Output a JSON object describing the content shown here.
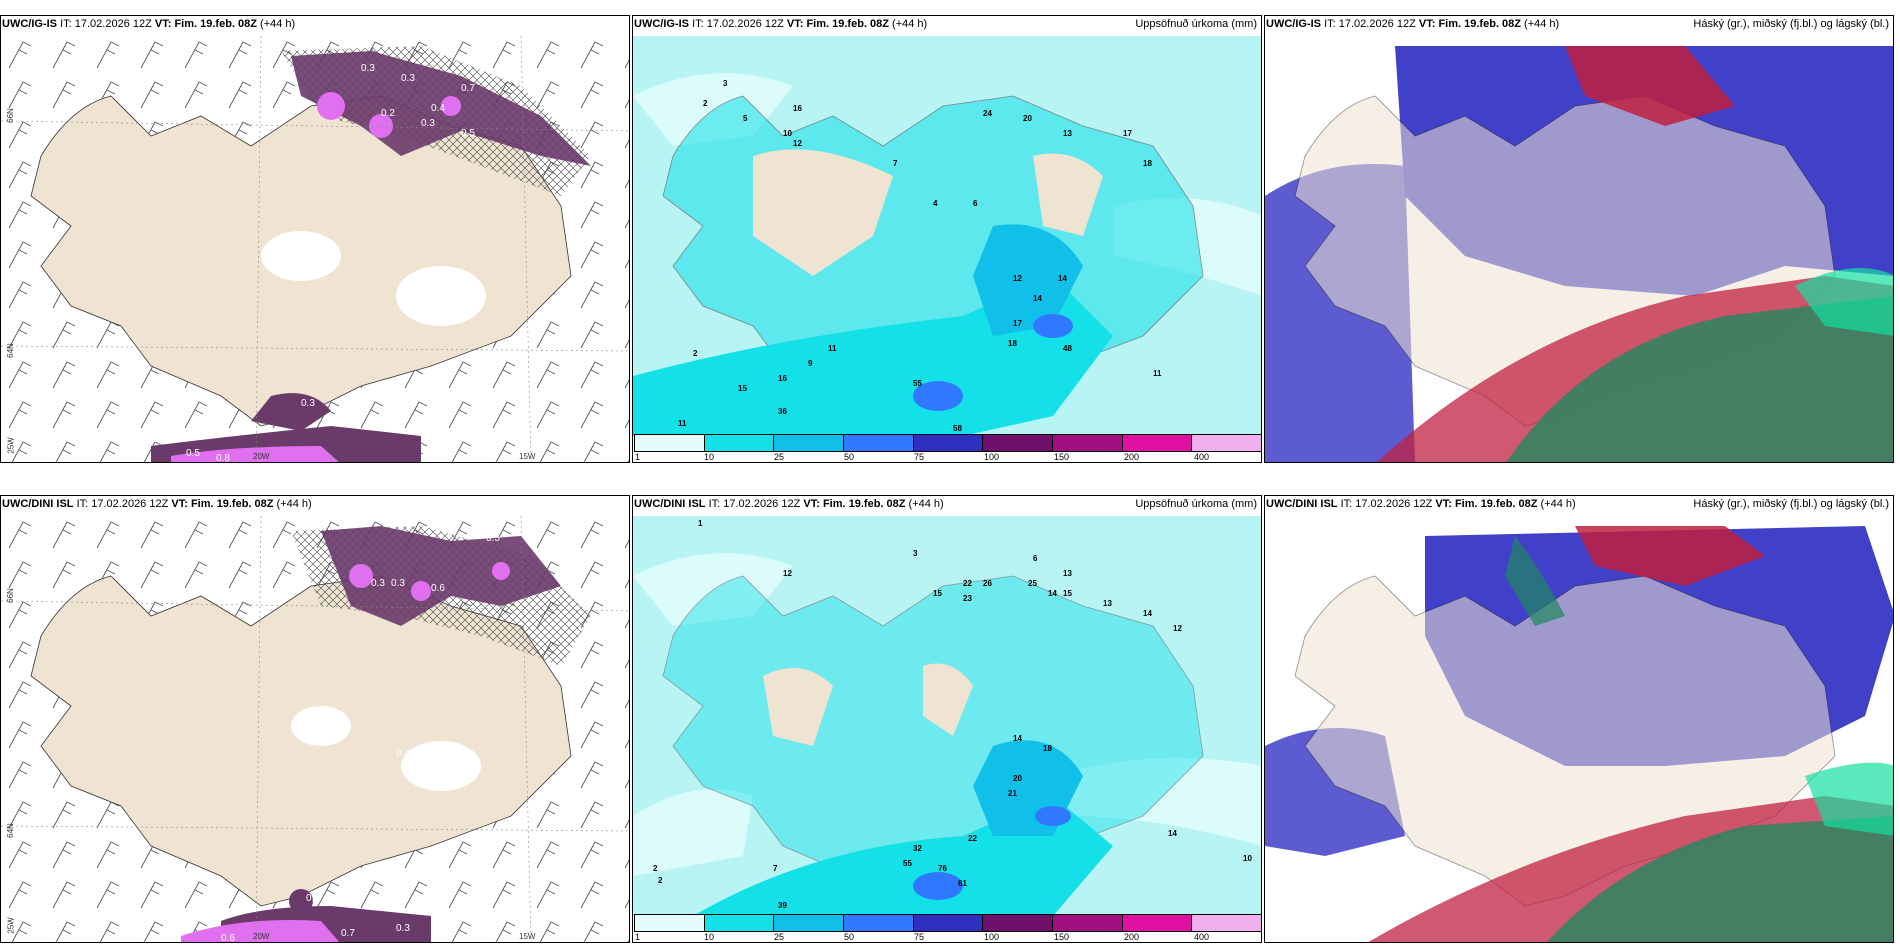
{
  "colors": {
    "land": "#efe3d2",
    "sea_white": "#ffffff",
    "precip_light": "#b8f4f4",
    "precip_cyan": "#14e0e8",
    "precip_mid": "#10c0e8",
    "precip_blue": "#3860ff",
    "precip_dark": "#3030c0",
    "precip_purple": "#70106a",
    "cloud_high": "#c02040",
    "cloud_mid": "#4040c8",
    "cloud_low": "#208860",
    "snow_purple": "#6a3a6a",
    "snow_magenta": "#e070f0"
  },
  "rows": [
    {
      "name": "IG-IS",
      "left": {
        "model": "UWC/IG-IS",
        "it_label": "IT:",
        "it_value": "17.02.2026 12Z",
        "vt_label": "VT: Fim. 19.feb. 08Z",
        "lead": "(+44 h)",
        "snow_labels": [
          "0.3",
          "0.3",
          "0.2",
          "0.3",
          "0.7",
          "0.5",
          "0.4",
          "0.8",
          "0.5",
          "0.3"
        ]
      },
      "middle": {
        "model": "UWC/IG-IS",
        "it_label": "IT:",
        "it_value": "17.02.2026 12Z",
        "vt_label": "VT: Fim. 19.feb. 08Z",
        "lead": "(+44 h)",
        "title_right": "Uppsöfnuð úrkoma (mm)",
        "precip_labels": [
          "2",
          "5",
          "3",
          "12",
          "10",
          "16",
          "7",
          "6",
          "4",
          "24",
          "20",
          "13",
          "17",
          "18",
          "12",
          "14",
          "14",
          "17",
          "18",
          "48",
          "36",
          "15",
          "16",
          "11",
          "11",
          "9",
          "2",
          "11",
          "55",
          "58"
        ]
      },
      "right": {
        "model": "UWC/IG-IS",
        "it_label": "IT:",
        "it_value": "17.02.2026 12Z",
        "vt_label": "VT: Fim. 19.feb. 08Z",
        "lead": "(+44 h)",
        "title_right": "Háský (gr.), miðský (fj.bl.) og lágský (bl.)"
      }
    },
    {
      "name": "DINI",
      "left": {
        "model": "UWC/DINI ISL",
        "it_label": "IT:",
        "it_value": "17.02.2026 12Z",
        "vt_label": "VT: Fim. 19.feb. 08Z",
        "lead": "(+44 h)",
        "snow_labels": [
          "0.5",
          "0.3",
          "0.3",
          "0.6",
          "0.4",
          "0.4",
          "0.7",
          "0.3",
          "0.6",
          "0.7"
        ]
      },
      "middle": {
        "model": "UWC/DINI ISL",
        "it_label": "IT:",
        "it_value": "17.02.2026 12Z",
        "vt_label": "VT: Fim. 19.feb. 08Z",
        "lead": "(+44 h)",
        "title_right": "Uppsöfnuð úrkoma (mm)",
        "precip_labels": [
          "1",
          "3",
          "12",
          "6",
          "13",
          "15",
          "22",
          "23",
          "26",
          "25",
          "13",
          "14",
          "15",
          "14",
          "12",
          "14",
          "18",
          "20",
          "21",
          "22",
          "32",
          "55",
          "76",
          "61",
          "39",
          "14",
          "10",
          "2",
          "2",
          "7"
        ]
      },
      "right": {
        "model": "UWC/DINI ISL",
        "it_label": "IT:",
        "it_value": "17.02.2026 12Z",
        "vt_label": "VT: Fim. 19.feb. 08Z",
        "lead": "(+44 h)",
        "title_right": "Háský (gr.), miðský (fj.bl.) og lágský (bl.)"
      }
    }
  ],
  "axis": {
    "lat_66": "66N",
    "lat_64": "64N",
    "lon_25": "25W",
    "lon_20": "20W",
    "lon_15": "15W"
  },
  "legend": {
    "ticks": [
      "1",
      "10",
      "25",
      "50",
      "75",
      "100",
      "150",
      "200",
      "400"
    ],
    "colors": [
      "#e4fcfc",
      "#14e0e8",
      "#10c0e8",
      "#3078ff",
      "#3030c0",
      "#70106a",
      "#a01080",
      "#e010a0",
      "#f0b0f0"
    ]
  }
}
